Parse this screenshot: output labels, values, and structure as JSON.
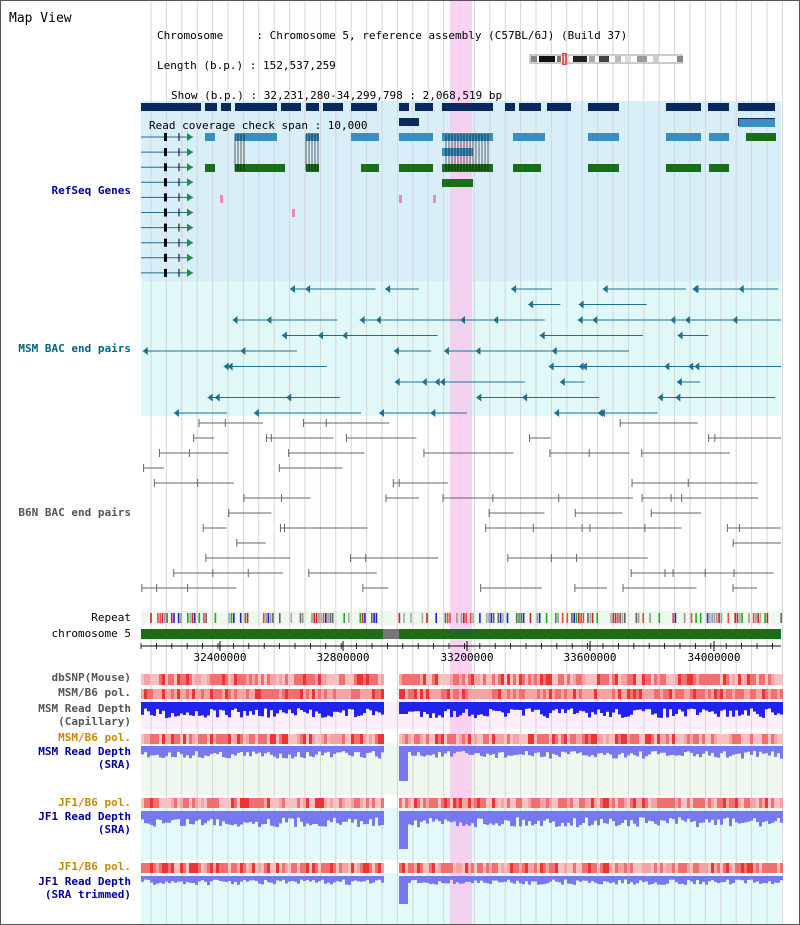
{
  "title": "Map View",
  "info": {
    "chromosome": "Chromosome     : Chromosome 5, reference assembly (C57BL/6J) (Build 37)",
    "length": "Length (b.p.) : 152,537,259",
    "show": "Show (b.p.) : 32,231,280-34,299,798 : 2,068,519 bp",
    "coverage": "Read coverage check span : 10,000"
  },
  "tracks": {
    "refseq": "RefSeq Genes",
    "msm_bac": "MSM BAC end pairs",
    "b6n_bac": "B6N BAC end pairs",
    "repeat": "Repeat",
    "chromosome": "chromosome 5",
    "dbsnp": "dbSNP(Mouse)",
    "msm_b6_pol": "MSM/B6 pol.",
    "msm_read_depth_cap_1": "MSM Read Depth",
    "msm_read_depth_cap_2": "(Capillary)",
    "msm_b6_pol_2": "MSM/B6 pol.",
    "msm_read_depth_sra_1": "MSM Read Depth",
    "msm_read_depth_sra_2": "(SRA)",
    "jf1_b6_pol": "JF1/B6 pol.",
    "jf1_read_depth_sra_1": "JF1 Read Depth",
    "jf1_read_depth_sra_2": "(SRA)",
    "jf1_b6_pol_2": "JF1/B6 pol.",
    "jf1_read_depth_trim_1": "JF1 Read Depth",
    "jf1_read_depth_trim_2": "(SRA trimmed)"
  },
  "axis": {
    "ticks": [
      "32400000",
      "32800000",
      "33200000",
      "33600000",
      "34000000"
    ]
  },
  "colors": {
    "refseq_dark": "#0a2a5e",
    "refseq_mid": "#3a8fc0",
    "refseq_green": "#1a6e1a",
    "msm_teal": "#1f6f8f",
    "b6n_gray": "#777777",
    "highlight": "#f7c8ee",
    "depth_blue": "#2222ee",
    "depth_light": "#7777ee",
    "pol_red": "#ee3333",
    "chrom_green": "#1a6e1a",
    "label_navy": "#000099",
    "label_teal": "#006680",
    "label_orange": "#cc8800"
  }
}
